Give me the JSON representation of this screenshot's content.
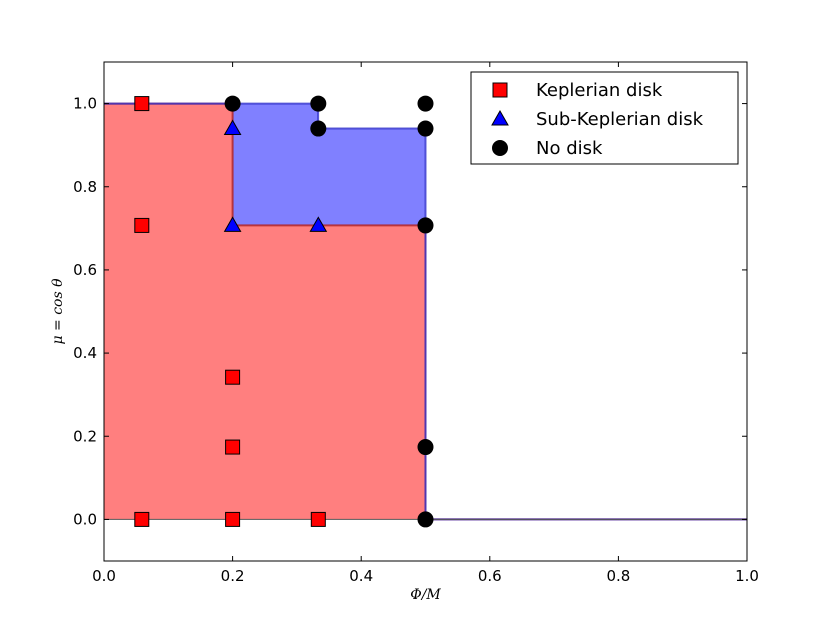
{
  "chart_data": {
    "type": "scatter",
    "xlabel": "Φ/M",
    "ylabel": "μ = cos θ",
    "xlim": [
      0.0,
      1.0
    ],
    "ylim": [
      -0.1,
      1.1
    ],
    "xticks": [
      "0.0",
      "0.2",
      "0.4",
      "0.6",
      "0.8",
      "1.0"
    ],
    "yticks": [
      "0.0",
      "0.2",
      "0.4",
      "0.6",
      "0.8",
      "1.0"
    ],
    "legend_position": "top-right",
    "regions": [
      {
        "label": "Keplerian disk region",
        "color": "#ff7f7f",
        "edge_color": "#b22222",
        "boundary": [
          [
            0.0,
            1.0
          ],
          [
            0.2,
            1.0
          ],
          [
            0.2,
            0.707
          ],
          [
            0.5,
            0.707
          ],
          [
            0.5,
            0.0
          ],
          [
            1.0,
            0.0
          ]
        ]
      },
      {
        "label": "Sub-Keplerian disk region",
        "color": "#8080ff",
        "edge_color": "#3333cc",
        "boundary": [
          [
            0.0,
            1.0
          ],
          [
            0.333,
            1.0
          ],
          [
            0.333,
            0.94
          ],
          [
            0.5,
            0.94
          ],
          [
            0.5,
            0.0
          ],
          [
            1.0,
            0.0
          ]
        ]
      }
    ],
    "series": [
      {
        "name": "Keplerian disk",
        "marker": "square",
        "color": "#ff0000",
        "x": [
          0.0588,
          0.0588,
          0.0588,
          0.2,
          0.2,
          0.2,
          0.3333
        ],
        "y": [
          1.0,
          0.707,
          0.0,
          0.342,
          0.174,
          0.0,
          0.0
        ]
      },
      {
        "name": "Sub-Keplerian disk",
        "marker": "triangle",
        "color": "#0000ff",
        "x": [
          0.2,
          0.2,
          0.3333
        ],
        "y": [
          0.94,
          0.707,
          0.707
        ]
      },
      {
        "name": "No disk",
        "marker": "circle",
        "color": "#000000",
        "x": [
          0.2,
          0.3333,
          0.3333,
          0.5,
          0.5,
          0.5,
          0.5,
          0.5
        ],
        "y": [
          1.0,
          1.0,
          0.94,
          1.0,
          0.94,
          0.707,
          0.174,
          0.0
        ]
      }
    ]
  }
}
